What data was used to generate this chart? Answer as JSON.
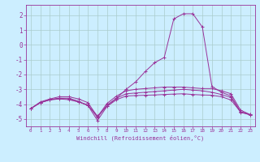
{
  "xlabel": "Windchill (Refroidissement éolien,°C)",
  "ylabel": "",
  "xlim": [
    -0.5,
    23.5
  ],
  "ylim": [
    -5.5,
    2.7
  ],
  "yticks": [
    -5,
    -4,
    -3,
    -2,
    -1,
    0,
    1,
    2
  ],
  "xticks": [
    0,
    1,
    2,
    3,
    4,
    5,
    6,
    7,
    8,
    9,
    10,
    11,
    12,
    13,
    14,
    15,
    16,
    17,
    18,
    19,
    20,
    21,
    22,
    23
  ],
  "background_color": "#cceeff",
  "line_color": "#993399",
  "grid_color": "#aacccc",
  "series": [
    {
      "x": [
        0,
        1,
        2,
        3,
        4,
        5,
        6,
        7,
        8,
        9,
        10,
        11,
        12,
        13,
        14,
        15,
        16,
        17,
        18,
        19,
        20,
        21,
        22,
        23
      ],
      "y": [
        -4.3,
        -3.9,
        -3.7,
        -3.6,
        -3.6,
        -3.8,
        -4.1,
        -5.1,
        -4.15,
        -3.6,
        -3.0,
        -2.5,
        -1.8,
        -1.2,
        -0.85,
        1.75,
        2.1,
        2.1,
        1.2,
        -2.8,
        -3.2,
        -3.45,
        -4.5,
        -4.7
      ]
    },
    {
      "x": [
        0,
        1,
        2,
        3,
        4,
        5,
        6,
        7,
        8,
        9,
        10,
        11,
        12,
        13,
        14,
        15,
        16,
        17,
        18,
        19,
        20,
        21,
        22,
        23
      ],
      "y": [
        -4.3,
        -3.85,
        -3.65,
        -3.5,
        -3.5,
        -3.65,
        -3.9,
        -4.85,
        -3.95,
        -3.45,
        -3.1,
        -3.0,
        -2.95,
        -2.9,
        -2.85,
        -2.85,
        -2.85,
        -2.9,
        -2.95,
        -2.95,
        -3.1,
        -3.3,
        -4.4,
        -4.7
      ]
    },
    {
      "x": [
        0,
        1,
        2,
        3,
        4,
        5,
        6,
        7,
        8,
        9,
        10,
        11,
        12,
        13,
        14,
        15,
        16,
        17,
        18,
        19,
        20,
        21,
        22,
        23
      ],
      "y": [
        -4.3,
        -3.9,
        -3.7,
        -3.6,
        -3.65,
        -3.85,
        -4.05,
        -4.9,
        -4.05,
        -3.6,
        -3.3,
        -3.25,
        -3.2,
        -3.15,
        -3.1,
        -3.05,
        -3.0,
        -3.05,
        -3.1,
        -3.2,
        -3.35,
        -3.55,
        -4.55,
        -4.72
      ]
    },
    {
      "x": [
        0,
        1,
        2,
        3,
        4,
        5,
        6,
        7,
        8,
        9,
        10,
        11,
        12,
        13,
        14,
        15,
        16,
        17,
        18,
        19,
        20,
        21,
        22,
        23
      ],
      "y": [
        -4.3,
        -3.9,
        -3.72,
        -3.65,
        -3.7,
        -3.85,
        -4.08,
        -4.8,
        -4.15,
        -3.7,
        -3.45,
        -3.42,
        -3.4,
        -3.38,
        -3.35,
        -3.32,
        -3.3,
        -3.35,
        -3.38,
        -3.4,
        -3.5,
        -3.72,
        -4.52,
        -4.72
      ]
    }
  ]
}
